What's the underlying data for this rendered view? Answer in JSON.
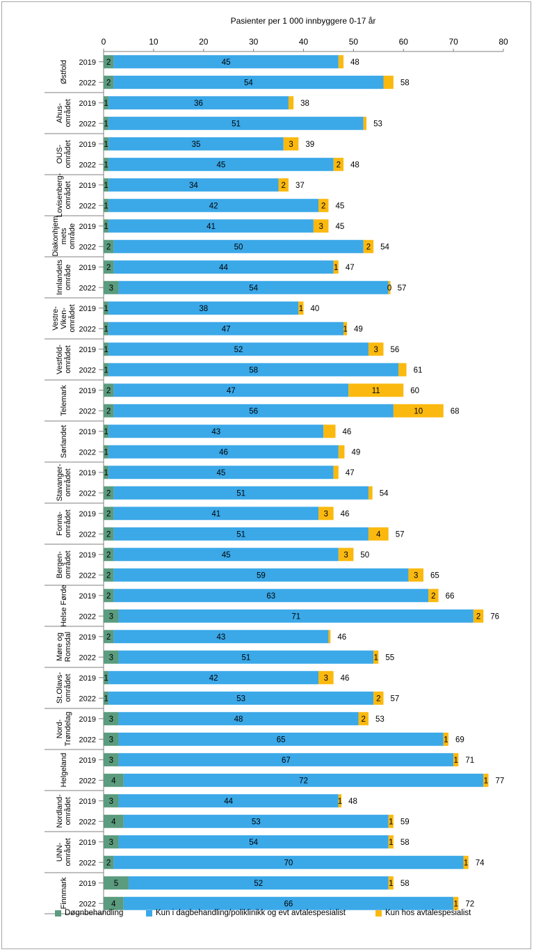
{
  "chart_data": {
    "type": "bar",
    "orientation": "horizontal",
    "stacked": true,
    "title": "Pasienter per 1 000 innbyggere 0-17 år",
    "xlim": [
      0,
      80
    ],
    "xticks": [
      0,
      10,
      20,
      30,
      40,
      50,
      60,
      70,
      80
    ],
    "axis_position": "top",
    "legend_position": "bottom",
    "colors": {
      "dogn": "#5b9b7e",
      "dag": "#3ba8e8",
      "avtale": "#fbb90f"
    },
    "series_names": {
      "dogn": "Døgnbehandling",
      "dag": "Kun i dagbehandling/poliklinikk og evt avtalespesialist",
      "avtale": "Kun hos avtalespesialist"
    },
    "groups": [
      {
        "label": [
          "Østfold"
        ],
        "rows": [
          {
            "year": "2019",
            "dogn": 2,
            "dag": 45,
            "avtale": 1,
            "labels": [
              "2",
              "45",
              ""
            ],
            "total": "48"
          },
          {
            "year": "2022",
            "dogn": 2,
            "dag": 54,
            "avtale": 2,
            "labels": [
              "2",
              "54",
              ""
            ],
            "total": "58"
          }
        ]
      },
      {
        "label": [
          "Ahus-",
          "området"
        ],
        "rows": [
          {
            "year": "2019",
            "dogn": 1,
            "dag": 36,
            "avtale": 1,
            "labels": [
              "1",
              "36",
              ""
            ],
            "total": "38"
          },
          {
            "year": "2022",
            "dogn": 1,
            "dag": 51,
            "avtale": 0.6,
            "labels": [
              "1",
              "51",
              ""
            ],
            "total": "53"
          }
        ]
      },
      {
        "label": [
          "OUS-",
          "området"
        ],
        "rows": [
          {
            "year": "2019",
            "dogn": 1,
            "dag": 35,
            "avtale": 3,
            "labels": [
              "1",
              "35",
              "3"
            ],
            "total": "39"
          },
          {
            "year": "2022",
            "dogn": 1,
            "dag": 45,
            "avtale": 2,
            "labels": [
              "1",
              "45",
              "2"
            ],
            "total": "48"
          }
        ]
      },
      {
        "label": [
          "Lovisenberg-",
          "området"
        ],
        "rows": [
          {
            "year": "2019",
            "dogn": 1,
            "dag": 34,
            "avtale": 2,
            "labels": [
              "1",
              "34",
              "2"
            ],
            "total": "37"
          },
          {
            "year": "2022",
            "dogn": 1,
            "dag": 42,
            "avtale": 2,
            "labels": [
              "1",
              "42",
              "2"
            ],
            "total": "45"
          }
        ]
      },
      {
        "label": [
          "Diakonhjem",
          "mets",
          "område"
        ],
        "rows": [
          {
            "year": "2019",
            "dogn": 1,
            "dag": 41,
            "avtale": 3,
            "labels": [
              "1",
              "41",
              "3"
            ],
            "total": "45"
          },
          {
            "year": "2022",
            "dogn": 2,
            "dag": 50,
            "avtale": 2,
            "labels": [
              "2",
              "50",
              "2"
            ],
            "total": "54"
          }
        ]
      },
      {
        "label": [
          "Innlandets",
          "område"
        ],
        "rows": [
          {
            "year": "2019",
            "dogn": 2,
            "dag": 44,
            "avtale": 1,
            "labels": [
              "2",
              "44",
              "1"
            ],
            "total": "47"
          },
          {
            "year": "2022",
            "dogn": 3,
            "dag": 54,
            "avtale": 0.4,
            "labels": [
              "3",
              "54",
              "0"
            ],
            "total": "57"
          }
        ]
      },
      {
        "label": [
          "Vestre-",
          "Viken-",
          "området"
        ],
        "rows": [
          {
            "year": "2019",
            "dogn": 1,
            "dag": 38,
            "avtale": 1,
            "labels": [
              "1",
              "38",
              "1"
            ],
            "total": "40"
          },
          {
            "year": "2022",
            "dogn": 1,
            "dag": 47,
            "avtale": 0.7,
            "labels": [
              "1",
              "47",
              "1"
            ],
            "total": "49"
          }
        ]
      },
      {
        "label": [
          "Vestfold-",
          "området"
        ],
        "rows": [
          {
            "year": "2019",
            "dogn": 1,
            "dag": 52,
            "avtale": 3,
            "labels": [
              "1",
              "52",
              "3"
            ],
            "total": "56"
          },
          {
            "year": "2022",
            "dogn": 1,
            "dag": 58,
            "avtale": 1.6,
            "labels": [
              "1",
              "58",
              ""
            ],
            "total": "61"
          }
        ]
      },
      {
        "label": [
          "Telemark"
        ],
        "rows": [
          {
            "year": "2019",
            "dogn": 2,
            "dag": 47,
            "avtale": 11,
            "labels": [
              "2",
              "47",
              "11"
            ],
            "total": "60"
          },
          {
            "year": "2022",
            "dogn": 2,
            "dag": 56,
            "avtale": 10,
            "labels": [
              "2",
              "56",
              "10"
            ],
            "total": "68"
          }
        ]
      },
      {
        "label": [
          "Sørlandet"
        ],
        "rows": [
          {
            "year": "2019",
            "dogn": 1,
            "dag": 43,
            "avtale": 2.4,
            "labels": [
              "1",
              "43",
              ""
            ],
            "total": "46"
          },
          {
            "year": "2022",
            "dogn": 1,
            "dag": 46,
            "avtale": 1.2,
            "labels": [
              "1",
              "46",
              ""
            ],
            "total": "49"
          }
        ]
      },
      {
        "label": [
          "Stavanger-",
          "området"
        ],
        "rows": [
          {
            "year": "2019",
            "dogn": 1,
            "dag": 45,
            "avtale": 1,
            "labels": [
              "1",
              "45",
              ""
            ],
            "total": "47"
          },
          {
            "year": "2022",
            "dogn": 2,
            "dag": 51,
            "avtale": 0.8,
            "labels": [
              "2",
              "51",
              ""
            ],
            "total": "54"
          }
        ]
      },
      {
        "label": [
          "Fonna-",
          "området"
        ],
        "rows": [
          {
            "year": "2019",
            "dogn": 2,
            "dag": 41,
            "avtale": 3,
            "labels": [
              "2",
              "41",
              "3"
            ],
            "total": "46"
          },
          {
            "year": "2022",
            "dogn": 2,
            "dag": 51,
            "avtale": 4,
            "labels": [
              "2",
              "51",
              "4"
            ],
            "total": "57"
          }
        ]
      },
      {
        "label": [
          "Bergen-",
          "området"
        ],
        "rows": [
          {
            "year": "2019",
            "dogn": 2,
            "dag": 45,
            "avtale": 3,
            "labels": [
              "2",
              "45",
              "3"
            ],
            "total": "50"
          },
          {
            "year": "2022",
            "dogn": 2,
            "dag": 59,
            "avtale": 3,
            "labels": [
              "2",
              "59",
              "3"
            ],
            "total": "65"
          }
        ]
      },
      {
        "label": [
          "Helse Førde"
        ],
        "rows": [
          {
            "year": "2019",
            "dogn": 2,
            "dag": 63,
            "avtale": 2,
            "labels": [
              "2",
              "63",
              "2"
            ],
            "total": "66"
          },
          {
            "year": "2022",
            "dogn": 3,
            "dag": 71,
            "avtale": 2,
            "labels": [
              "3",
              "71",
              "2"
            ],
            "total": "76"
          }
        ]
      },
      {
        "label": [
          "Møre og",
          "Romsdal"
        ],
        "rows": [
          {
            "year": "2019",
            "dogn": 2,
            "dag": 43,
            "avtale": 0.4,
            "labels": [
              "2",
              "43",
              ""
            ],
            "total": "46"
          },
          {
            "year": "2022",
            "dogn": 3,
            "dag": 51,
            "avtale": 1,
            "labels": [
              "3",
              "51",
              "1"
            ],
            "total": "55"
          }
        ]
      },
      {
        "label": [
          "St.Olavs-",
          "området"
        ],
        "rows": [
          {
            "year": "2019",
            "dogn": 1,
            "dag": 42,
            "avtale": 3,
            "labels": [
              "1",
              "42",
              "3"
            ],
            "total": "46"
          },
          {
            "year": "2022",
            "dogn": 1,
            "dag": 53,
            "avtale": 2,
            "labels": [
              "1",
              "53",
              "2"
            ],
            "total": "57"
          }
        ]
      },
      {
        "label": [
          "Nord-",
          "Trøndelag"
        ],
        "rows": [
          {
            "year": "2019",
            "dogn": 3,
            "dag": 48,
            "avtale": 2,
            "labels": [
              "3",
              "48",
              "2"
            ],
            "total": "53"
          },
          {
            "year": "2022",
            "dogn": 3,
            "dag": 65,
            "avtale": 1,
            "labels": [
              "3",
              "65",
              "1"
            ],
            "total": "69"
          }
        ]
      },
      {
        "label": [
          "Helgeland"
        ],
        "rows": [
          {
            "year": "2019",
            "dogn": 3,
            "dag": 67,
            "avtale": 1,
            "labels": [
              "3",
              "67",
              "1"
            ],
            "total": "71"
          },
          {
            "year": "2022",
            "dogn": 4,
            "dag": 72,
            "avtale": 1,
            "labels": [
              "4",
              "72",
              "1"
            ],
            "total": "77"
          }
        ]
      },
      {
        "label": [
          "Nordland-",
          "området"
        ],
        "rows": [
          {
            "year": "2019",
            "dogn": 3,
            "dag": 44,
            "avtale": 0.6,
            "labels": [
              "3",
              "44",
              "1"
            ],
            "total": "48"
          },
          {
            "year": "2022",
            "dogn": 4,
            "dag": 53,
            "avtale": 1,
            "labels": [
              "4",
              "53",
              "1"
            ],
            "total": "59"
          }
        ]
      },
      {
        "label": [
          "UNN-",
          "området"
        ],
        "rows": [
          {
            "year": "2019",
            "dogn": 3,
            "dag": 54,
            "avtale": 1,
            "labels": [
              "3",
              "54",
              "1"
            ],
            "total": "58"
          },
          {
            "year": "2022",
            "dogn": 2,
            "dag": 70,
            "avtale": 1,
            "labels": [
              "2",
              "70",
              "1"
            ],
            "total": "74"
          }
        ]
      },
      {
        "label": [
          "Finnmark"
        ],
        "rows": [
          {
            "year": "2019",
            "dogn": 5,
            "dag": 52,
            "avtale": 1,
            "labels": [
              "5",
              "52",
              "1"
            ],
            "total": "58"
          },
          {
            "year": "2022",
            "dogn": 4,
            "dag": 66,
            "avtale": 1,
            "labels": [
              "4",
              "66",
              "1"
            ],
            "total": "72"
          }
        ]
      }
    ]
  }
}
